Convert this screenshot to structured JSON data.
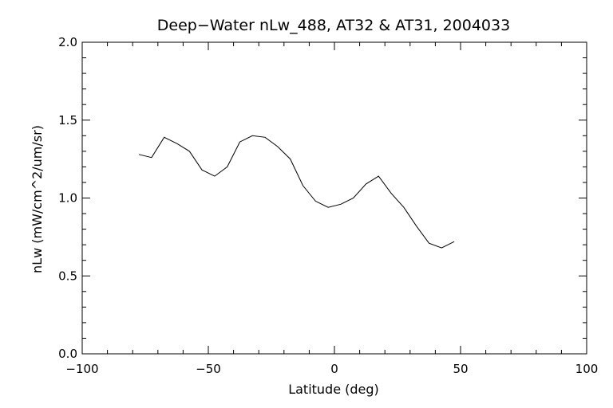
{
  "chart_data": {
    "type": "line",
    "title": "Deep−Water nLw_488, AT32 & AT31, 2004033",
    "xlabel": "Latitude (deg)",
    "ylabel": "nLw (mW/cm^2/um/sr)",
    "xlim": [
      -100,
      100
    ],
    "ylim": [
      0.0,
      2.0
    ],
    "xticks": [
      -100,
      -50,
      0,
      50,
      100
    ],
    "xtick_labels": [
      "−100",
      "−50",
      "0",
      "50",
      "100"
    ],
    "yticks": [
      0.0,
      0.5,
      1.0,
      1.5,
      2.0
    ],
    "ytick_labels": [
      "0.0",
      "0.5",
      "1.0",
      "1.5",
      "2.0"
    ],
    "grid": false,
    "line_color": "#000000",
    "x": [
      -77.5,
      -72.5,
      -67.5,
      -62.5,
      -57.5,
      -52.5,
      -47.5,
      -42.5,
      -37.5,
      -32.5,
      -27.5,
      -22.5,
      -17.5,
      -12.5,
      -7.5,
      -2.5,
      2.5,
      7.5,
      12.5,
      17.5,
      22.5,
      27.5,
      32.5,
      37.5,
      42.5,
      47.5
    ],
    "y": [
      1.28,
      1.26,
      1.39,
      1.35,
      1.3,
      1.18,
      1.14,
      1.2,
      1.36,
      1.4,
      1.39,
      1.33,
      1.25,
      1.08,
      0.98,
      0.94,
      0.96,
      1.0,
      1.09,
      1.14,
      1.03,
      0.94,
      0.82,
      0.71,
      0.68,
      0.72
    ]
  }
}
